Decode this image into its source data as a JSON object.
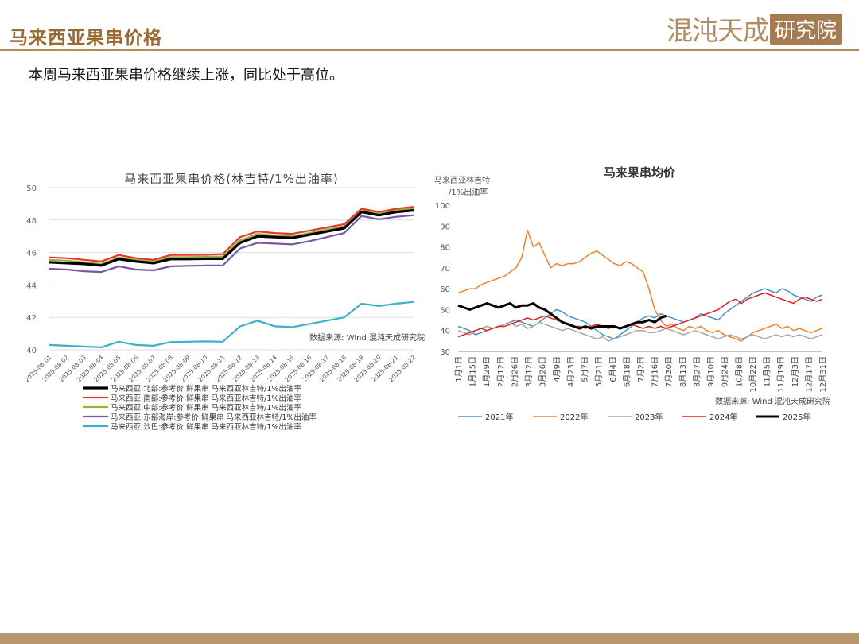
{
  "header": {
    "title": "马来西亚果串价格",
    "logo_text": "混沌天成",
    "logo_badge": "研究院"
  },
  "summary": "本周马来西亚果串价格继续上涨，同比处于高位。",
  "colors": {
    "header_accent": "#9a6a33",
    "footer_bar": "#b8956b"
  },
  "chart_data": [
    {
      "type": "line",
      "title": "马来西亚果串价格(林吉特/1%出油率)",
      "source_note": "数据来源: Wind 混沌天成研究院",
      "ylim": [
        40,
        50
      ],
      "yticks": [
        40,
        42,
        44,
        46,
        48,
        50
      ],
      "grid": true,
      "legend_position": "bottom",
      "categories": [
        "2025-08-01",
        "2025-08-02",
        "2025-08-03",
        "2025-08-04",
        "2025-08-05",
        "2025-08-06",
        "2025-08-07",
        "2025-08-08",
        "2025-08-09",
        "2025-08-10",
        "2025-08-11",
        "2025-08-12",
        "2025-08-13",
        "2025-08-14",
        "2025-08-15",
        "2025-08-16",
        "2025-08-17",
        "2025-08-18",
        "2025-08-19",
        "2025-08-20",
        "2025-08-21",
        "2025-08-22"
      ],
      "series": [
        {
          "name": "马来西亚:北部:参考价:鲜果串 马来西亚林吉特/1%出油率",
          "color": "#000000",
          "width": 3.2,
          "values": [
            45.4,
            45.35,
            45.3,
            45.2,
            45.6,
            45.45,
            45.35,
            45.6,
            45.6,
            45.62,
            45.62,
            46.6,
            47.0,
            46.95,
            46.9,
            47.1,
            47.3,
            47.5,
            48.5,
            48.3,
            48.5,
            48.6
          ]
        },
        {
          "name": "马来西亚:南部:参考价:鲜果串 马来西亚林吉特/1%出油率",
          "color": "#e23b2a",
          "width": 2.2,
          "values": [
            45.7,
            45.65,
            45.55,
            45.45,
            45.85,
            45.65,
            45.55,
            45.85,
            45.85,
            45.87,
            45.9,
            46.95,
            47.3,
            47.2,
            47.15,
            47.35,
            47.55,
            47.75,
            48.7,
            48.5,
            48.7,
            48.82
          ]
        },
        {
          "name": "马来西亚:中部:参考价:鲜果串 马来西亚林吉特/1%出油率",
          "color": "#9ab043",
          "width": 2.2,
          "values": [
            45.55,
            45.5,
            45.4,
            45.3,
            45.7,
            45.55,
            45.45,
            45.72,
            45.72,
            45.75,
            45.75,
            46.75,
            47.15,
            47.05,
            47.0,
            47.2,
            47.42,
            47.62,
            48.6,
            48.4,
            48.6,
            48.72
          ]
        },
        {
          "name": "马来西亚:东部海岸:参考价:鲜果串 马来西亚林吉特/1%出油率",
          "color": "#7a57a6",
          "width": 2.2,
          "values": [
            45.0,
            44.95,
            44.85,
            44.8,
            45.15,
            44.95,
            44.9,
            45.15,
            45.18,
            45.2,
            45.2,
            46.25,
            46.6,
            46.55,
            46.5,
            46.7,
            46.95,
            47.2,
            48.25,
            48.05,
            48.2,
            48.3
          ]
        },
        {
          "name": "马来西亚:沙巴:参考价:鲜果串 马来西亚林吉特/1%出油率",
          "color": "#3cb0c9",
          "width": 2.2,
          "values": [
            40.3,
            40.25,
            40.2,
            40.15,
            40.5,
            40.3,
            40.25,
            40.48,
            40.5,
            40.52,
            40.5,
            41.45,
            41.8,
            41.45,
            41.4,
            41.6,
            41.8,
            42.0,
            42.85,
            42.7,
            42.85,
            42.95
          ]
        }
      ]
    },
    {
      "type": "line",
      "title": "马来果串均价",
      "ylabel": "马来西亚林吉特\n/1%出油率",
      "source_note": "数据来源: Wind 混沌天成研究院",
      "ylim": [
        30,
        100
      ],
      "yticks": [
        30,
        40,
        50,
        60,
        70,
        80,
        90,
        100
      ],
      "x_ticks": [
        "1月1日",
        "1月15日",
        "1月29日",
        "2月12日",
        "2月26日",
        "3月12日",
        "3月26日",
        "4月9日",
        "4月23日",
        "5月7日",
        "5月21日",
        "6月4日",
        "6月18日",
        "7月2日",
        "7月16日",
        "7月30日",
        "8月13日",
        "8月27日",
        "9月10日",
        "9月24日",
        "10月8日",
        "10月22日",
        "11月5日",
        "11月19日",
        "12月3日",
        "12月17日",
        "12月31日"
      ],
      "grid": false,
      "legend_position": "bottom",
      "series": [
        {
          "name": "2021年",
          "color": "#4a90c8",
          "width": 1.5,
          "values": [
            42,
            41,
            40,
            38,
            39,
            40,
            41,
            42,
            43,
            44,
            45,
            44,
            43,
            42,
            44,
            46,
            48,
            50,
            49,
            47,
            46,
            45,
            44,
            42,
            40,
            38,
            37,
            36,
            38,
            40,
            42,
            44,
            46,
            47,
            46,
            48,
            47,
            46,
            45,
            44,
            45,
            46,
            48,
            47,
            46,
            45,
            48,
            50,
            52,
            54,
            56,
            58,
            59,
            60,
            59,
            58,
            60,
            59,
            57,
            56,
            55,
            54,
            56,
            57
          ]
        },
        {
          "name": "2022年",
          "color": "#ee8130",
          "width": 1.5,
          "values": [
            58,
            59,
            60,
            60,
            62,
            63,
            64,
            65,
            66,
            68,
            70,
            75,
            88,
            80,
            82,
            76,
            70,
            72,
            71,
            72,
            72,
            73,
            75,
            77,
            78,
            76,
            74,
            72,
            71,
            73,
            72,
            70,
            68,
            60,
            50,
            45,
            42,
            43,
            41,
            40,
            42,
            41,
            42,
            40,
            39,
            40,
            38,
            37,
            36,
            35,
            37,
            39,
            40,
            41,
            42,
            43,
            41,
            42,
            40,
            41,
            40,
            39,
            40,
            41
          ]
        },
        {
          "name": "2023年",
          "color": "#a8a8a8",
          "width": 1.5,
          "values": [
            40,
            39,
            38,
            40,
            41,
            42,
            41,
            42,
            43,
            44,
            42,
            43,
            41,
            42,
            44,
            43,
            42,
            41,
            40,
            41,
            40,
            39,
            38,
            37,
            36,
            37,
            35,
            36,
            37,
            38,
            39,
            40,
            40,
            39,
            39,
            40,
            41,
            40,
            39,
            38,
            39,
            40,
            39,
            38,
            37,
            36,
            37,
            38,
            37,
            36,
            37,
            38,
            37,
            36,
            37,
            38,
            37,
            38,
            37,
            38,
            37,
            36,
            37,
            38
          ]
        },
        {
          "name": "2024年",
          "color": "#e02020",
          "width": 1.5,
          "values": [
            37,
            38,
            39,
            40,
            41,
            40,
            41,
            42,
            42,
            43,
            44,
            45,
            46,
            45,
            46,
            47,
            46,
            45,
            44,
            43,
            42,
            42,
            41,
            42,
            43,
            42,
            41,
            42,
            41,
            42,
            43,
            42,
            41,
            42,
            41,
            42,
            41,
            42,
            43,
            44,
            45,
            46,
            47,
            48,
            49,
            50,
            52,
            54,
            55,
            53,
            55,
            56,
            57,
            58,
            57,
            56,
            55,
            54,
            53,
            55,
            56,
            55,
            54,
            55
          ]
        },
        {
          "name": "2025年",
          "color": "#000000",
          "width": 3,
          "values": [
            52,
            51,
            50,
            51,
            52,
            53,
            52,
            51,
            52,
            53,
            51,
            52,
            52,
            53,
            51,
            50,
            48,
            46,
            44,
            43,
            42,
            41,
            42,
            41,
            42,
            42,
            42,
            42,
            41,
            42,
            43,
            44,
            44,
            45,
            44,
            46,
            47
          ]
        }
      ]
    }
  ]
}
